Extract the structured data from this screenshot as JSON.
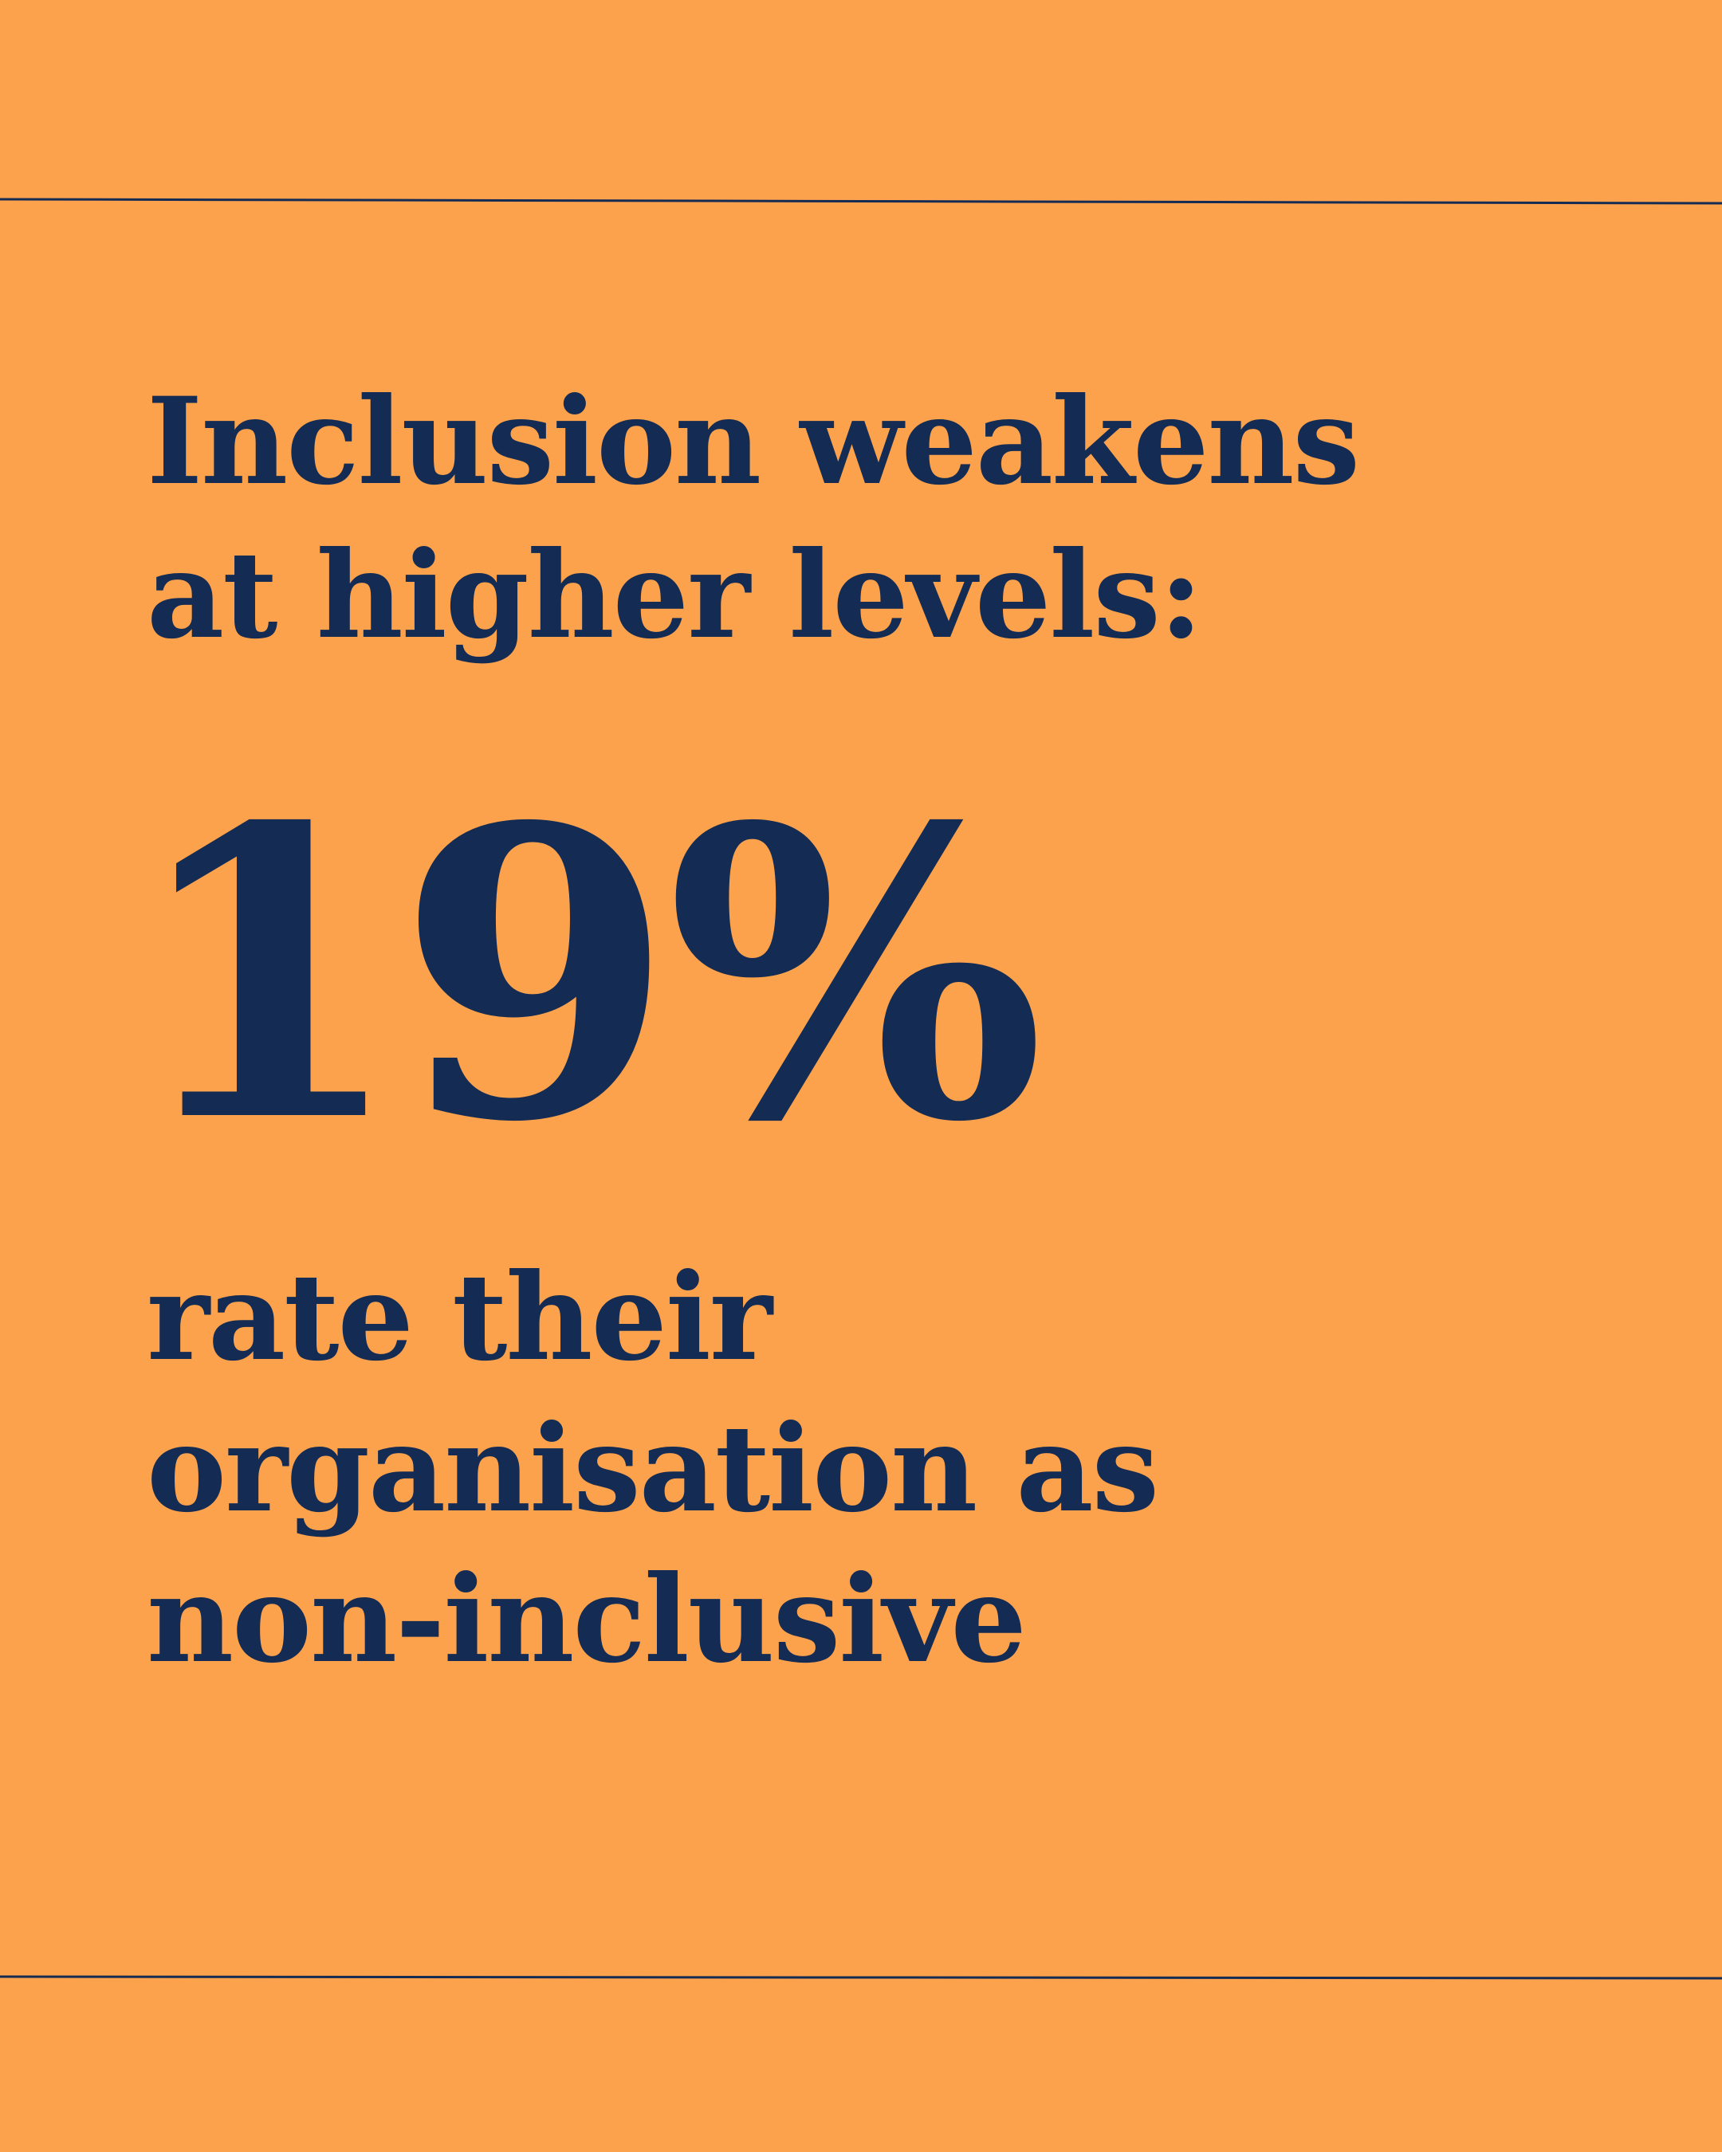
{
  "headline": [
    "Inclusion weakens",
    "at higher levels:"
  ],
  "stat": "19%",
  "description": [
    "rate their",
    "organisation as",
    "non-inclusive"
  ]
}
